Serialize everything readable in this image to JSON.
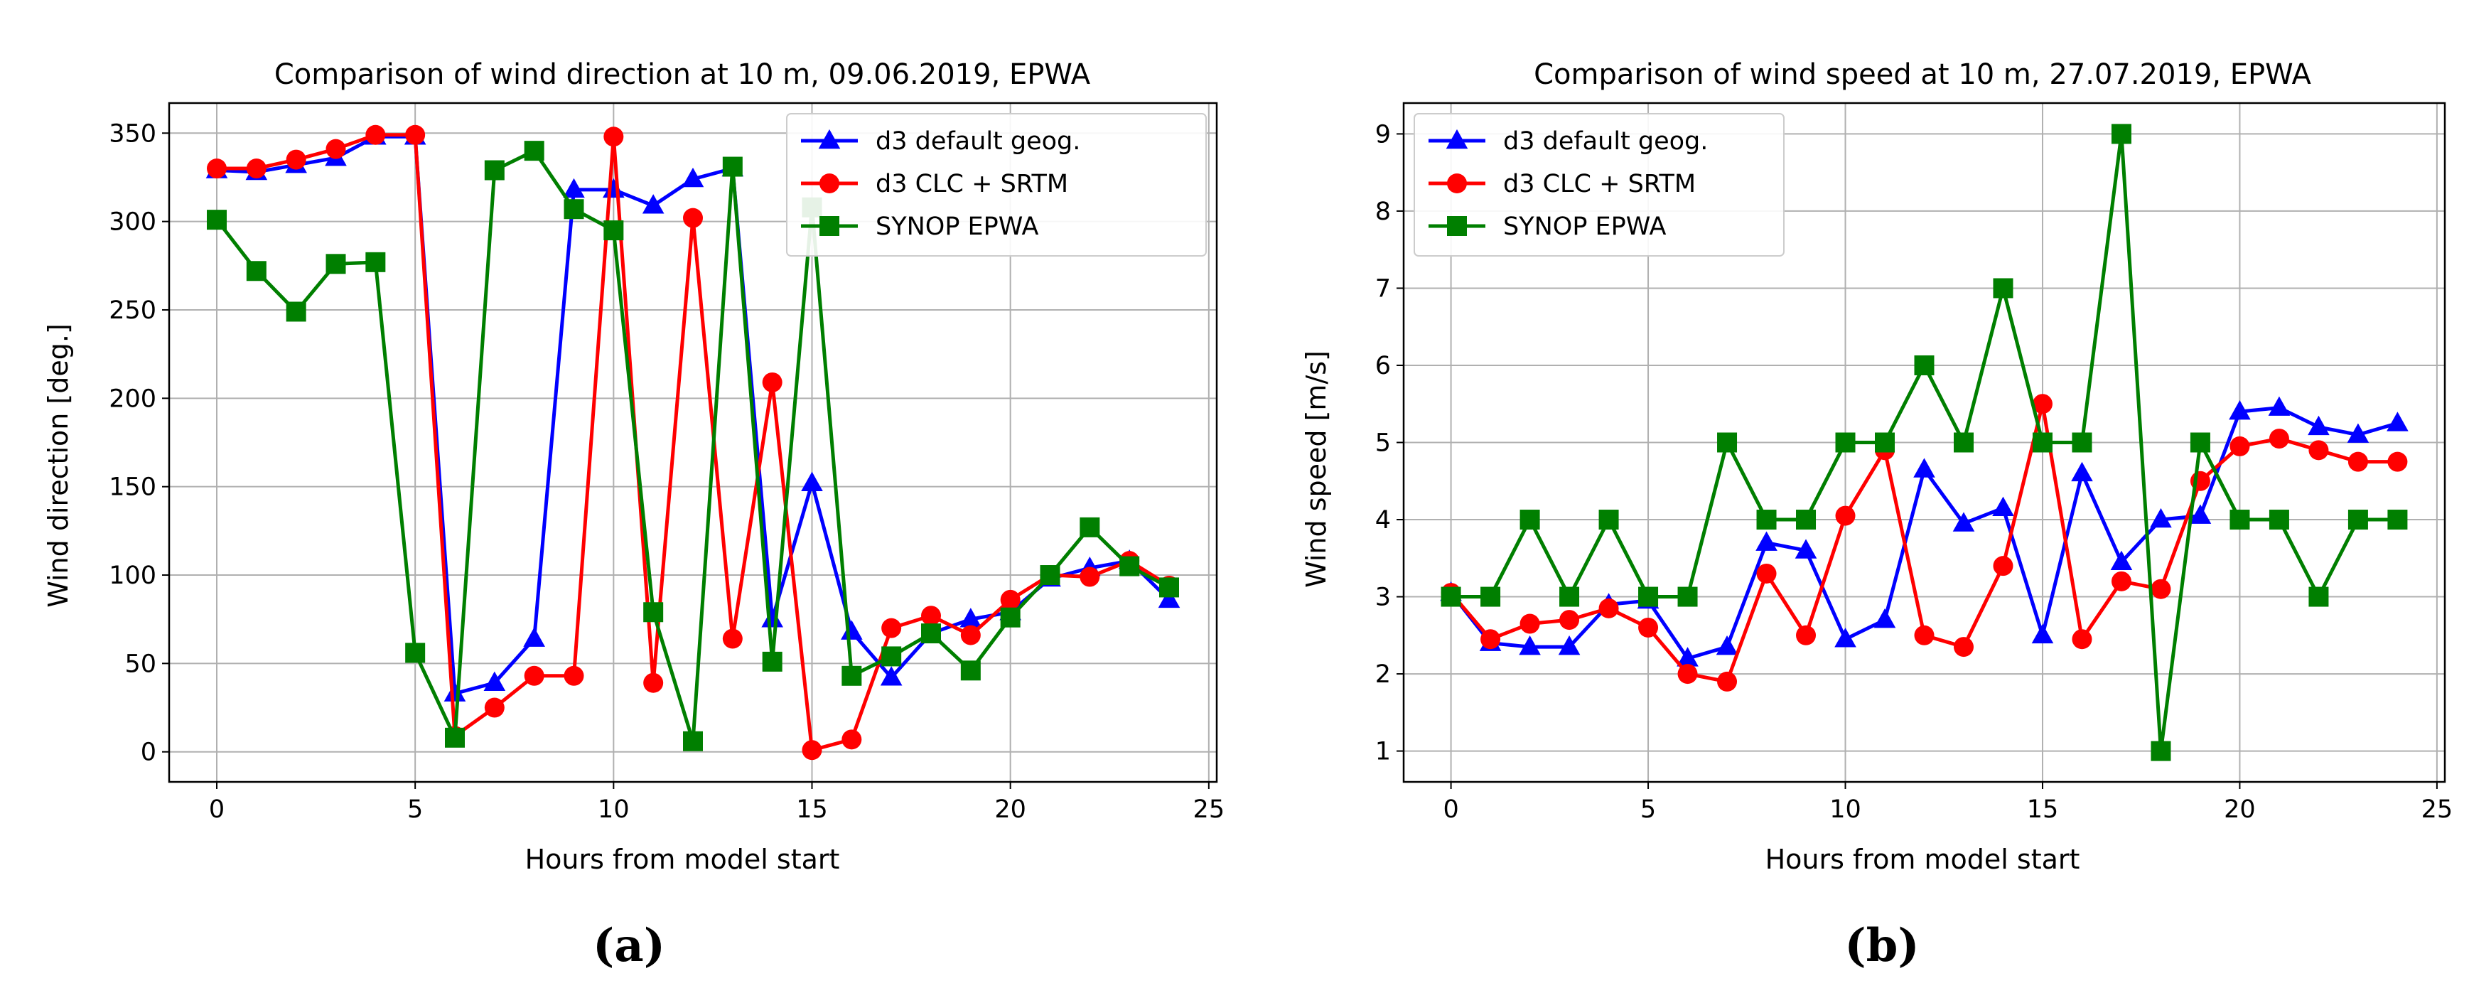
{
  "chart_data": [
    {
      "type": "line",
      "panel_label": "(a)",
      "title": "Comparison of wind direction at 10 m, 09.06.2019, EPWA",
      "xlabel": "Hours from model start",
      "ylabel": "Wind direction [deg.]",
      "xlim": [
        -1.2,
        25.2
      ],
      "ylim": [
        -17,
        367
      ],
      "xticks": [
        0,
        5,
        10,
        15,
        20,
        25
      ],
      "yticks": [
        0,
        50,
        100,
        150,
        200,
        250,
        300,
        350
      ],
      "grid": true,
      "legend_position": "top-right",
      "x": [
        0,
        1,
        2,
        3,
        4,
        5,
        6,
        7,
        8,
        9,
        10,
        11,
        12,
        13,
        14,
        15,
        16,
        17,
        18,
        19,
        20,
        21,
        22,
        23,
        24
      ],
      "series": [
        {
          "name": "d3 default geog.",
          "color": "#0000ff",
          "marker": "triangle",
          "values": [
            329,
            328,
            332,
            336,
            348,
            348,
            33,
            39,
            64,
            318,
            318,
            309,
            324,
            330,
            75,
            152,
            68,
            42,
            67,
            75,
            79,
            98,
            104,
            108,
            86
          ]
        },
        {
          "name": "d3 CLC + SRTM",
          "color": "#ff0000",
          "marker": "circle",
          "values": [
            330,
            330,
            335,
            341,
            349,
            349,
            9,
            25,
            43,
            43,
            348,
            39,
            302,
            64,
            209,
            1,
            7,
            70,
            77,
            66,
            86,
            100,
            99,
            108,
            94
          ]
        },
        {
          "name": "SYNOP EPWA",
          "color": "#007f00",
          "marker": "square",
          "values": [
            301,
            272,
            249,
            276,
            277,
            56,
            8,
            329,
            340,
            307,
            295,
            79,
            6,
            331,
            51,
            308,
            43,
            54,
            67,
            46,
            76,
            100,
            127,
            105,
            93
          ]
        }
      ]
    },
    {
      "type": "line",
      "panel_label": "(b)",
      "title": "Comparison of wind speed at 10 m, 27.07.2019, EPWA",
      "xlabel": "Hours from model start",
      "ylabel": "Wind speed [m/s]",
      "xlim": [
        -1.2,
        25.2
      ],
      "ylim": [
        0.6,
        9.4
      ],
      "xticks": [
        0,
        5,
        10,
        15,
        20,
        25
      ],
      "yticks": [
        1,
        2,
        3,
        4,
        5,
        6,
        7,
        8,
        9
      ],
      "grid": true,
      "legend_position": "top-left",
      "x": [
        0,
        1,
        2,
        3,
        4,
        5,
        6,
        7,
        8,
        9,
        10,
        11,
        12,
        13,
        14,
        15,
        16,
        17,
        18,
        19,
        20,
        21,
        22,
        23,
        24
      ],
      "series": [
        {
          "name": "d3 default geog.",
          "color": "#0000ff",
          "marker": "triangle",
          "values": [
            3.05,
            2.4,
            2.35,
            2.35,
            2.9,
            2.95,
            2.2,
            2.35,
            3.7,
            3.6,
            2.45,
            2.7,
            4.65,
            3.95,
            4.15,
            2.5,
            4.6,
            3.45,
            4.0,
            4.05,
            5.4,
            5.45,
            5.2,
            5.1,
            5.25
          ]
        },
        {
          "name": "d3 CLC + SRTM",
          "color": "#ff0000",
          "marker": "circle",
          "values": [
            3.05,
            2.45,
            2.65,
            2.7,
            2.85,
            2.6,
            2.0,
            1.9,
            3.3,
            2.5,
            4.05,
            4.9,
            2.5,
            2.35,
            3.4,
            5.5,
            2.45,
            3.2,
            3.1,
            4.5,
            4.95,
            5.05,
            4.9,
            4.75,
            4.75
          ]
        },
        {
          "name": "SYNOP EPWA",
          "color": "#007f00",
          "marker": "square",
          "values": [
            3,
            3,
            4,
            3,
            4,
            3,
            3,
            5,
            4,
            4,
            5,
            5,
            6,
            5,
            7,
            5,
            5,
            9,
            1,
            5,
            4,
            4,
            3,
            4,
            4
          ]
        }
      ]
    }
  ]
}
